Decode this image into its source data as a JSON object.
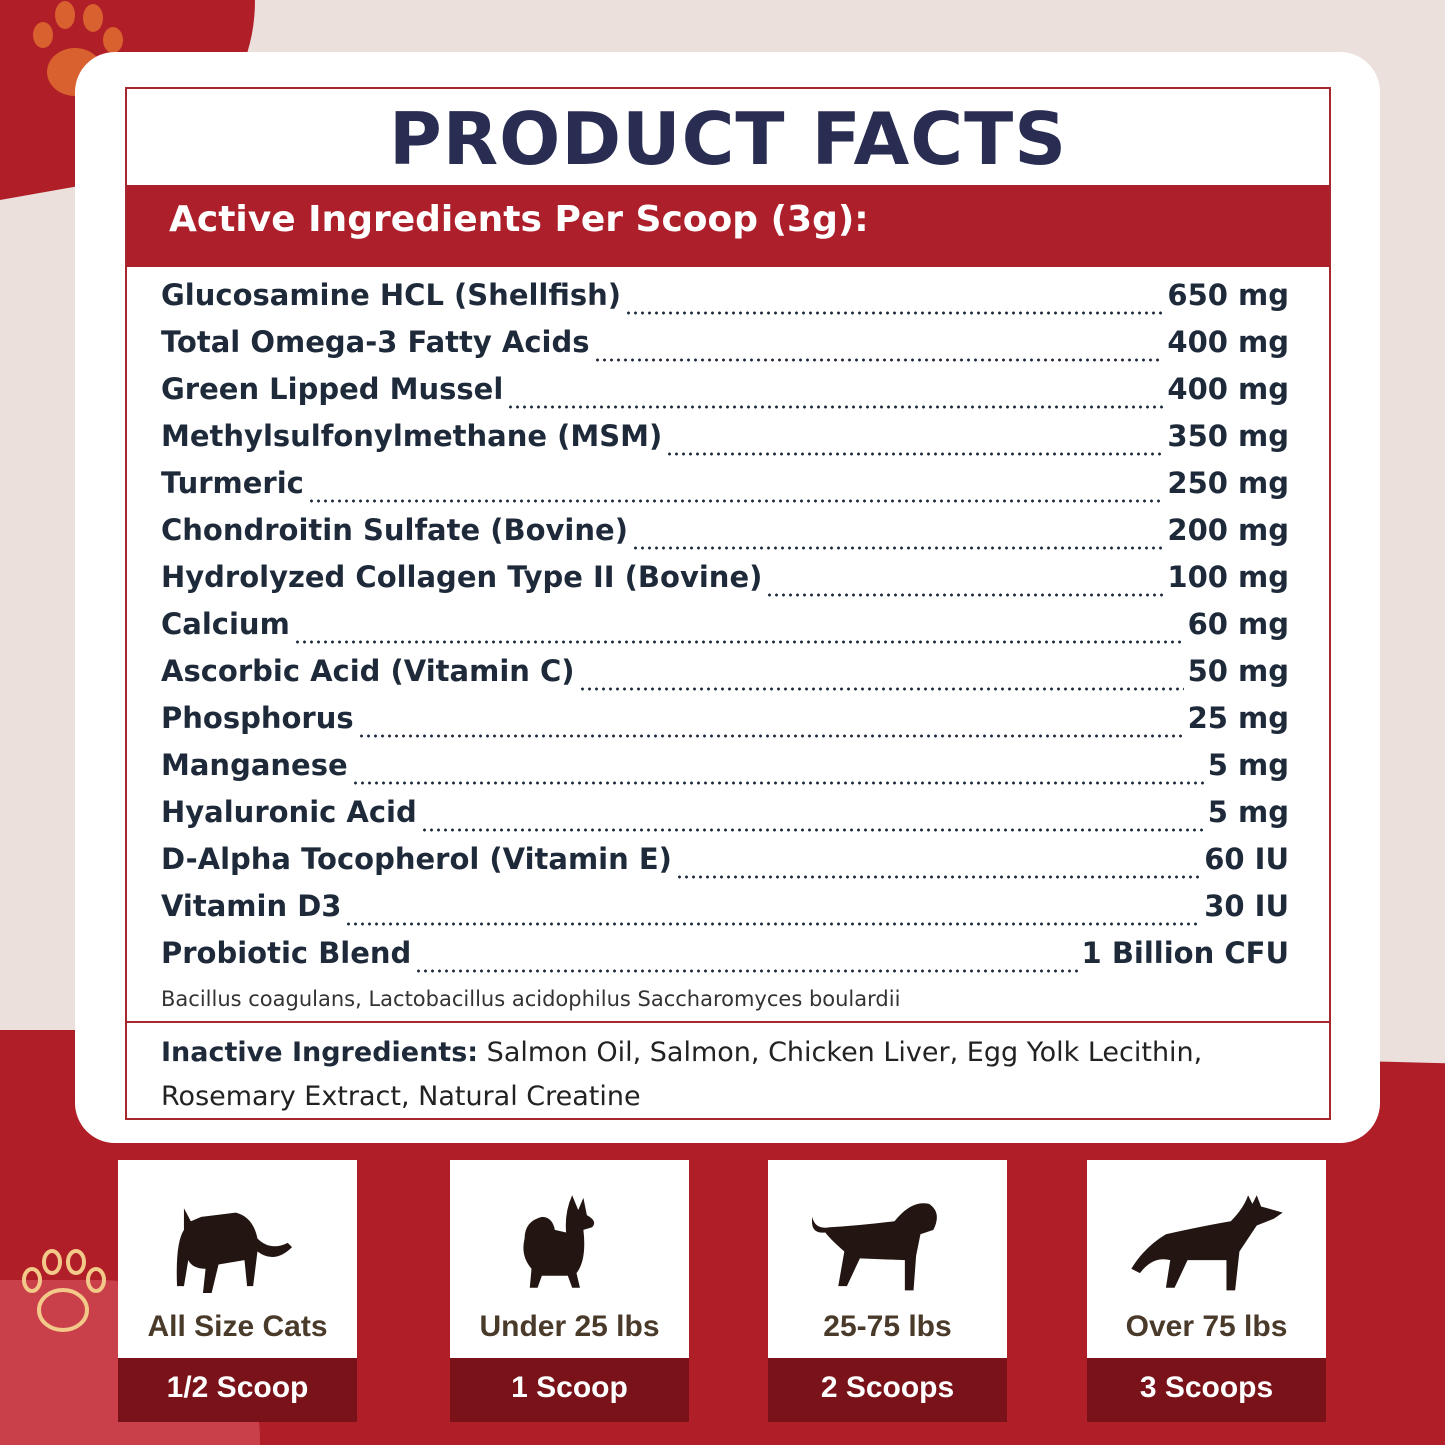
{
  "title": "PRODUCT FACTS",
  "band": "Active Ingredients Per Scoop (3g):",
  "ingredients": [
    {
      "name": "Glucosamine HCL (Shellfish)",
      "amount": "650 mg"
    },
    {
      "name": "Total Omega-3 Fatty Acids",
      "amount": "400 mg"
    },
    {
      "name": "Green Lipped Mussel",
      "amount": "400 mg"
    },
    {
      "name": "Methylsulfonylmethane (MSM)",
      "amount": "350 mg"
    },
    {
      "name": "Turmeric",
      "amount": "250 mg"
    },
    {
      "name": "Chondroitin Sulfate (Bovine)",
      "amount": "200 mg"
    },
    {
      "name": "Hydrolyzed Collagen Type II (Bovine)",
      "amount": "100 mg"
    },
    {
      "name": "Calcium",
      "amount": "60 mg"
    },
    {
      "name": "Ascorbic Acid (Vitamin C)",
      "amount": "50 mg"
    },
    {
      "name": "Phosphorus",
      "amount": "25 mg"
    },
    {
      "name": "Manganese",
      "amount": "5 mg"
    },
    {
      "name": "Hyaluronic Acid",
      "amount": "5 mg"
    },
    {
      "name": "D-Alpha Tocopherol (Vitamin E)",
      "amount": "60 IU"
    },
    {
      "name": "Vitamin D3",
      "amount": "30 IU"
    },
    {
      "name": "Probiotic Blend",
      "amount": "1 Billion CFU"
    }
  ],
  "probiotic_strains": "Bacillus coagulans, Lactobacillus acidophilus Saccharomyces boulardii",
  "inactive": {
    "label": "Inactive Ingredients:",
    "text": " Salmon Oil, Salmon, Chicken Liver, Egg Yolk Lecithin, Rosemary Extract, Natural Creatine"
  },
  "dosing": [
    {
      "icon": "cat-icon",
      "label": "All Size Cats",
      "amount": "1/2 Scoop"
    },
    {
      "icon": "small-dog-icon",
      "label": "Under 25 lbs",
      "amount": "1 Scoop"
    },
    {
      "icon": "medium-dog-icon",
      "label": "25-75 lbs",
      "amount": "2 Scoops"
    },
    {
      "icon": "large-dog-icon",
      "label": "Over 75 lbs",
      "amount": "3 Scoops"
    }
  ],
  "colors": {
    "red": "#b01e28",
    "dark_red": "#7a1219",
    "navy": "#2a2d52"
  }
}
